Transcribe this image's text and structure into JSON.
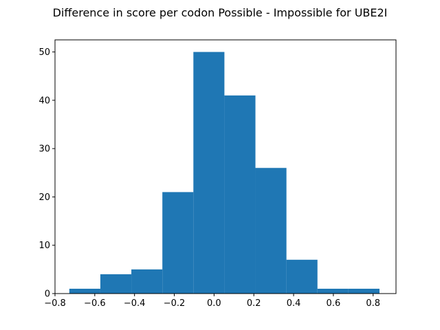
{
  "chart_data": {
    "type": "bar",
    "title": "Difference in score per codon Possible - Impossible for UBE2I",
    "xlabel": "",
    "ylabel": "",
    "xlim": [
      -0.8,
      0.915
    ],
    "ylim": [
      0,
      52.5
    ],
    "x_ticks": [
      "−0.8",
      "−0.6",
      "−0.4",
      "−0.2",
      "0.0",
      "0.2",
      "0.4",
      "0.6",
      "0.8"
    ],
    "x_tick_values": [
      -0.8,
      -0.6,
      -0.4,
      -0.2,
      0.0,
      0.2,
      0.4,
      0.6,
      0.8
    ],
    "y_ticks": [
      "0",
      "10",
      "20",
      "30",
      "40",
      "50"
    ],
    "y_tick_values": [
      0,
      10,
      20,
      30,
      40,
      50
    ],
    "bin_edges": [
      -0.728,
      -0.572,
      -0.416,
      -0.26,
      -0.104,
      0.052,
      0.208,
      0.364,
      0.52,
      0.676,
      0.832
    ],
    "values": [
      1,
      4,
      5,
      21,
      50,
      41,
      26,
      7,
      1,
      1
    ],
    "bar_color": "#1f77b4",
    "grid": false
  }
}
